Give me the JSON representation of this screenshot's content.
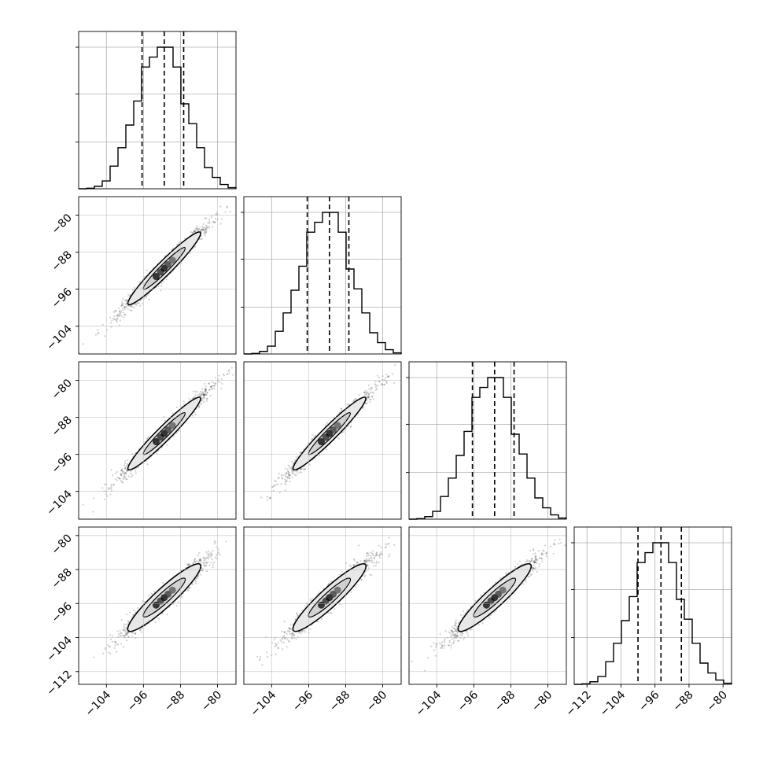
{
  "chart_data": {
    "type": "corner-plot",
    "n_params": 4,
    "grid": true,
    "colors": {
      "hist": "#000000",
      "contour_fill": "#e6e6e6",
      "points": "#000000",
      "grid": "#b0b0b0"
    },
    "params": [
      {
        "axis_range": [
          -110,
          -76
        ],
        "ticks": [
          -104,
          -96,
          -88,
          -80
        ],
        "tick_labels": [
          "−104",
          "−96",
          "−88",
          "−80"
        ],
        "quantiles": [
          -96.3,
          -91.5,
          -87.3
        ],
        "hist_x": [
          -110.0,
          -108.3,
          -106.6,
          -104.9,
          -103.2,
          -101.5,
          -99.8,
          -98.1,
          -96.4,
          -94.7,
          -93.0,
          -91.3,
          -89.6,
          -87.9,
          -86.2,
          -84.5,
          -82.8,
          -81.1,
          -79.4,
          -77.7,
          -76.0
        ],
        "hist_counts": [
          0.0,
          0.004,
          0.018,
          0.055,
          0.16,
          0.29,
          0.45,
          0.62,
          0.86,
          0.93,
          1.0,
          1.0,
          0.86,
          0.6,
          0.46,
          0.29,
          0.15,
          0.08,
          0.03,
          0.008
        ]
      },
      {
        "axis_range": [
          -110,
          -76
        ],
        "ticks": [
          -104,
          -96,
          -88,
          -80
        ],
        "tick_labels": [
          "−104",
          "−96",
          "−88",
          "−80"
        ],
        "quantiles": [
          -96.3,
          -91.5,
          -87.3
        ],
        "hist_x": [
          -110.0,
          -108.3,
          -106.6,
          -104.9,
          -103.2,
          -101.5,
          -99.8,
          -98.1,
          -96.4,
          -94.7,
          -93.0,
          -91.3,
          -89.6,
          -87.9,
          -86.2,
          -84.5,
          -82.8,
          -81.1,
          -79.4,
          -77.7,
          -76.0
        ],
        "hist_counts": [
          0.0,
          0.004,
          0.018,
          0.055,
          0.16,
          0.29,
          0.45,
          0.62,
          0.86,
          0.93,
          1.0,
          1.0,
          0.86,
          0.6,
          0.46,
          0.29,
          0.15,
          0.08,
          0.03,
          0.008
        ]
      },
      {
        "axis_range": [
          -110,
          -76
        ],
        "ticks": [
          -104,
          -96,
          -88,
          -80
        ],
        "tick_labels": [
          "−104",
          "−96",
          "−88",
          "−80"
        ],
        "quantiles": [
          -96.3,
          -91.5,
          -87.3
        ],
        "hist_x": [
          -110.0,
          -108.3,
          -106.6,
          -104.9,
          -103.2,
          -101.5,
          -99.8,
          -98.1,
          -96.4,
          -94.7,
          -93.0,
          -91.3,
          -89.6,
          -87.9,
          -86.2,
          -84.5,
          -82.8,
          -81.1,
          -79.4,
          -77.7,
          -76.0
        ],
        "hist_counts": [
          0.0,
          0.004,
          0.018,
          0.055,
          0.16,
          0.29,
          0.45,
          0.62,
          0.86,
          0.93,
          1.0,
          1.0,
          0.86,
          0.6,
          0.46,
          0.29,
          0.15,
          0.08,
          0.03,
          0.008
        ]
      },
      {
        "axis_range": [
          -115,
          -78
        ],
        "ticks": [
          -112,
          -104,
          -96,
          -88,
          -80
        ],
        "tick_labels": [
          "−112",
          "−104",
          "−96",
          "−88",
          "−80"
        ],
        "quantiles": [
          -100.0,
          -94.6,
          -89.8
        ],
        "hist_x": [
          -115.0,
          -113.15,
          -111.3,
          -109.45,
          -107.6,
          -105.75,
          -103.9,
          -102.05,
          -100.2,
          -98.35,
          -96.5,
          -94.65,
          -92.8,
          -90.95,
          -89.1,
          -87.25,
          -85.4,
          -83.55,
          -81.7,
          -79.85,
          -78.0
        ],
        "hist_counts": [
          0.0,
          0.004,
          0.018,
          0.055,
          0.16,
          0.29,
          0.45,
          0.62,
          0.86,
          0.93,
          1.0,
          1.0,
          0.86,
          0.6,
          0.46,
          0.29,
          0.15,
          0.08,
          0.03,
          0.008
        ]
      }
    ],
    "joint_2d": [
      {
        "row": 1,
        "col": 0,
        "center": [
          -91.5,
          -91.5
        ],
        "sd_major": 5.5,
        "sd_minor": 0.55
      },
      {
        "row": 2,
        "col": 0,
        "center": [
          -91.5,
          -91.5
        ],
        "sd_major": 5.5,
        "sd_minor": 0.55
      },
      {
        "row": 2,
        "col": 1,
        "center": [
          -91.5,
          -91.5
        ],
        "sd_major": 5.5,
        "sd_minor": 0.55
      },
      {
        "row": 3,
        "col": 0,
        "center": [
          -91.5,
          -94.6
        ],
        "sd_major": 5.5,
        "sd_minor": 0.75
      },
      {
        "row": 3,
        "col": 1,
        "center": [
          -91.5,
          -94.6
        ],
        "sd_major": 5.5,
        "sd_minor": 0.75
      },
      {
        "row": 3,
        "col": 2,
        "center": [
          -91.5,
          -94.6
        ],
        "sd_major": 5.5,
        "sd_minor": 0.75
      }
    ]
  }
}
